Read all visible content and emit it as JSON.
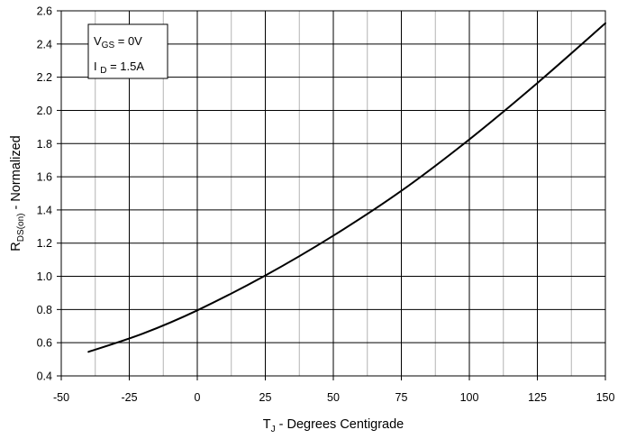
{
  "chart_data": {
    "type": "line",
    "xlabel": {
      "main": "T",
      "sub": "J",
      "rest": " - Degrees Centigrade"
    },
    "ylabel": {
      "main": "R",
      "sub": "DS(on)",
      "rest": " - Normalized"
    },
    "xlim": [
      -50,
      150
    ],
    "ylim": [
      0.4,
      2.6
    ],
    "x_major_ticks": [
      -50,
      -25,
      0,
      25,
      50,
      75,
      100,
      125,
      150
    ],
    "x_minor_step": 12.5,
    "y_ticks": [
      0.4,
      0.6,
      0.8,
      1.0,
      1.2,
      1.4,
      1.6,
      1.8,
      2.0,
      2.2,
      2.4,
      2.6
    ],
    "x_tick_labels": [
      "-50",
      "-25",
      "0",
      "25",
      "50",
      "75",
      "100",
      "125",
      "150"
    ],
    "y_tick_labels": [
      "0.4",
      "0.6",
      "0.8",
      "1.0",
      "1.2",
      "1.4",
      "1.6",
      "1.8",
      "2.0",
      "2.2",
      "2.4",
      "2.6"
    ],
    "grid": true,
    "legend_placement": "top-left",
    "annotations": [
      {
        "main": "V",
        "sub": "GS",
        "rest": " = 0V"
      },
      {
        "main": "I ",
        "sub": "D",
        "rest": " = 1.5A"
      }
    ],
    "series": [
      {
        "x": [
          -40,
          -20,
          0,
          25,
          50,
          75,
          100,
          125,
          150
        ],
        "values": [
          0.545,
          0.655,
          0.795,
          1.005,
          1.245,
          1.515,
          1.825,
          2.165,
          2.525
        ],
        "color": "#000000"
      }
    ]
  }
}
